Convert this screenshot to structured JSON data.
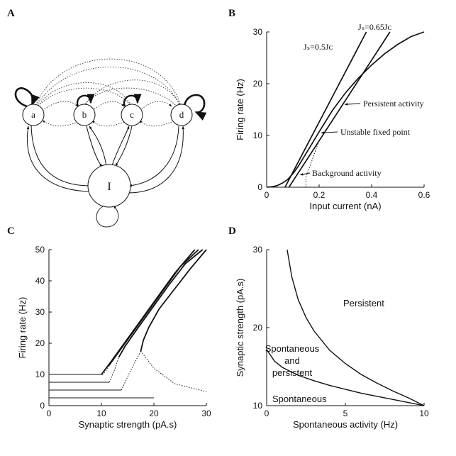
{
  "panels": {
    "A": {
      "label": "A",
      "nodes": {
        "a": "a",
        "b": "b",
        "c": "c",
        "d": "d",
        "inh": "I"
      }
    }
  },
  "chart_data": [
    {
      "panel": "B",
      "label": "B",
      "type": "line",
      "xlabel": "Input current (nA)",
      "ylabel": "Firing rate (Hz)",
      "xlim": [
        0,
        0.6
      ],
      "ylim": [
        0,
        30
      ],
      "xticks": [
        "0",
        "0.2",
        "0.4",
        "0.6"
      ],
      "yticks": [
        "0",
        "10",
        "20",
        "30"
      ],
      "transfer_curve": {
        "x": [
          0,
          0.02,
          0.04,
          0.06,
          0.08,
          0.1,
          0.12,
          0.15,
          0.2,
          0.25,
          0.3,
          0.35,
          0.4,
          0.45,
          0.5,
          0.55,
          0.6
        ],
        "y": [
          0,
          0.1,
          0.3,
          0.8,
          1.5,
          2.6,
          4.0,
          6.5,
          10.7,
          14.8,
          18.2,
          21.1,
          23.6,
          25.8,
          27.6,
          29.1,
          30
        ]
      },
      "lines": {
        "js05": {
          "x": [
            0.07,
            0.38
          ],
          "y": [
            0,
            30
          ]
        },
        "js065": {
          "x": [
            0.085,
            0.47
          ],
          "y": [
            0,
            30
          ]
        }
      },
      "dotted_drop": {
        "x": [
          0.15,
          0.15,
          0.2
        ],
        "y": [
          0,
          2,
          9
        ]
      },
      "annotations": {
        "js05": "Jₛ=0.5Jᴄ",
        "js065": "Jₛ=0.65Jᴄ",
        "persistent": "Persistent activity",
        "unstable": "Unstable fixed point",
        "background": "Background activity"
      },
      "points": {
        "persistent": [
          0.29,
          16
        ],
        "unstable": [
          0.2,
          10.5
        ],
        "background": [
          0.12,
          2.4
        ]
      }
    },
    {
      "panel": "C",
      "label": "C",
      "type": "line",
      "xlabel": "Synaptic strength (pA.s)",
      "ylabel": "Firing rate (Hz)",
      "xlim": [
        0,
        30
      ],
      "ylim": [
        0,
        50
      ],
      "xticks": [
        "0",
        "10",
        "20",
        "30"
      ],
      "yticks": [
        "0",
        "10",
        "20",
        "30",
        "40",
        "50"
      ],
      "baselines": [
        {
          "rate": 10,
          "end": 10.2
        },
        {
          "rate": 7.5,
          "end": 11.5
        },
        {
          "rate": 5,
          "end": 13.8
        },
        {
          "rate": 2.5,
          "end": 20
        }
      ],
      "upper_branches": [
        {
          "x": [
            10,
            12,
            15,
            18,
            21,
            24,
            27.8
          ],
          "y": [
            10,
            14.5,
            21.5,
            28.5,
            35.5,
            42.5,
            50
          ]
        },
        {
          "x": [
            11.4,
            13,
            16,
            19,
            22,
            25,
            28.5
          ],
          "y": [
            12.8,
            16.5,
            23.5,
            30.5,
            37.5,
            44.5,
            50
          ]
        },
        {
          "x": [
            13.3,
            14.5,
            17,
            20,
            23,
            26,
            29.3
          ],
          "y": [
            15.5,
            19,
            25,
            32,
            39,
            45.5,
            50
          ]
        },
        {
          "x": [
            17.5,
            18,
            19,
            21,
            24,
            27,
            30
          ],
          "y": [
            17.5,
            21,
            25,
            31,
            37.5,
            44,
            50
          ]
        }
      ],
      "unstable_branches": [
        {
          "x": [
            10.2,
            10.8,
            11.4
          ],
          "y": [
            10,
            11,
            12.8
          ]
        },
        {
          "x": [
            11.5,
            12.4,
            13.3
          ],
          "y": [
            7.5,
            11,
            15.5
          ]
        },
        {
          "x": [
            13.8,
            15.5,
            17.5
          ],
          "y": [
            5,
            11,
            17.5
          ]
        },
        {
          "x": [
            17.5,
            20,
            24,
            30
          ],
          "y": [
            17.5,
            12,
            7,
            4.5
          ]
        }
      ]
    },
    {
      "panel": "D",
      "label": "D",
      "type": "line",
      "xlabel": "Spontaneous activity (Hz)",
      "ylabel": "Synaptic strength (pA.s)",
      "xlim": [
        0,
        10
      ],
      "ylim": [
        10,
        30
      ],
      "xticks": [
        "0",
        "5",
        "10"
      ],
      "yticks": [
        "10",
        "20",
        "30"
      ],
      "lower_boundary": {
        "x": [
          0,
          0.5,
          1,
          2,
          3,
          4,
          5,
          6,
          7,
          8,
          9,
          10
        ],
        "y": [
          17.2,
          15.7,
          14.9,
          13.9,
          13.2,
          12.6,
          12.1,
          11.6,
          11.2,
          10.8,
          10.4,
          10
        ]
      },
      "upper_boundary": {
        "x": [
          1.3,
          1.6,
          2,
          2.5,
          3,
          4,
          5,
          6,
          7,
          8,
          9,
          10
        ],
        "y": [
          30,
          26.5,
          23.6,
          21.3,
          19.6,
          17.1,
          15.4,
          14,
          12.9,
          11.9,
          11,
          10
        ]
      },
      "baseline": {
        "x": [
          0,
          10
        ],
        "y": [
          10,
          10
        ]
      },
      "regions": {
        "persistent": "Persistent",
        "both_line1": "Spontaneous",
        "both_line2": "and",
        "both_line3": "persistent",
        "spontaneous": "Spontaneous"
      }
    }
  ]
}
